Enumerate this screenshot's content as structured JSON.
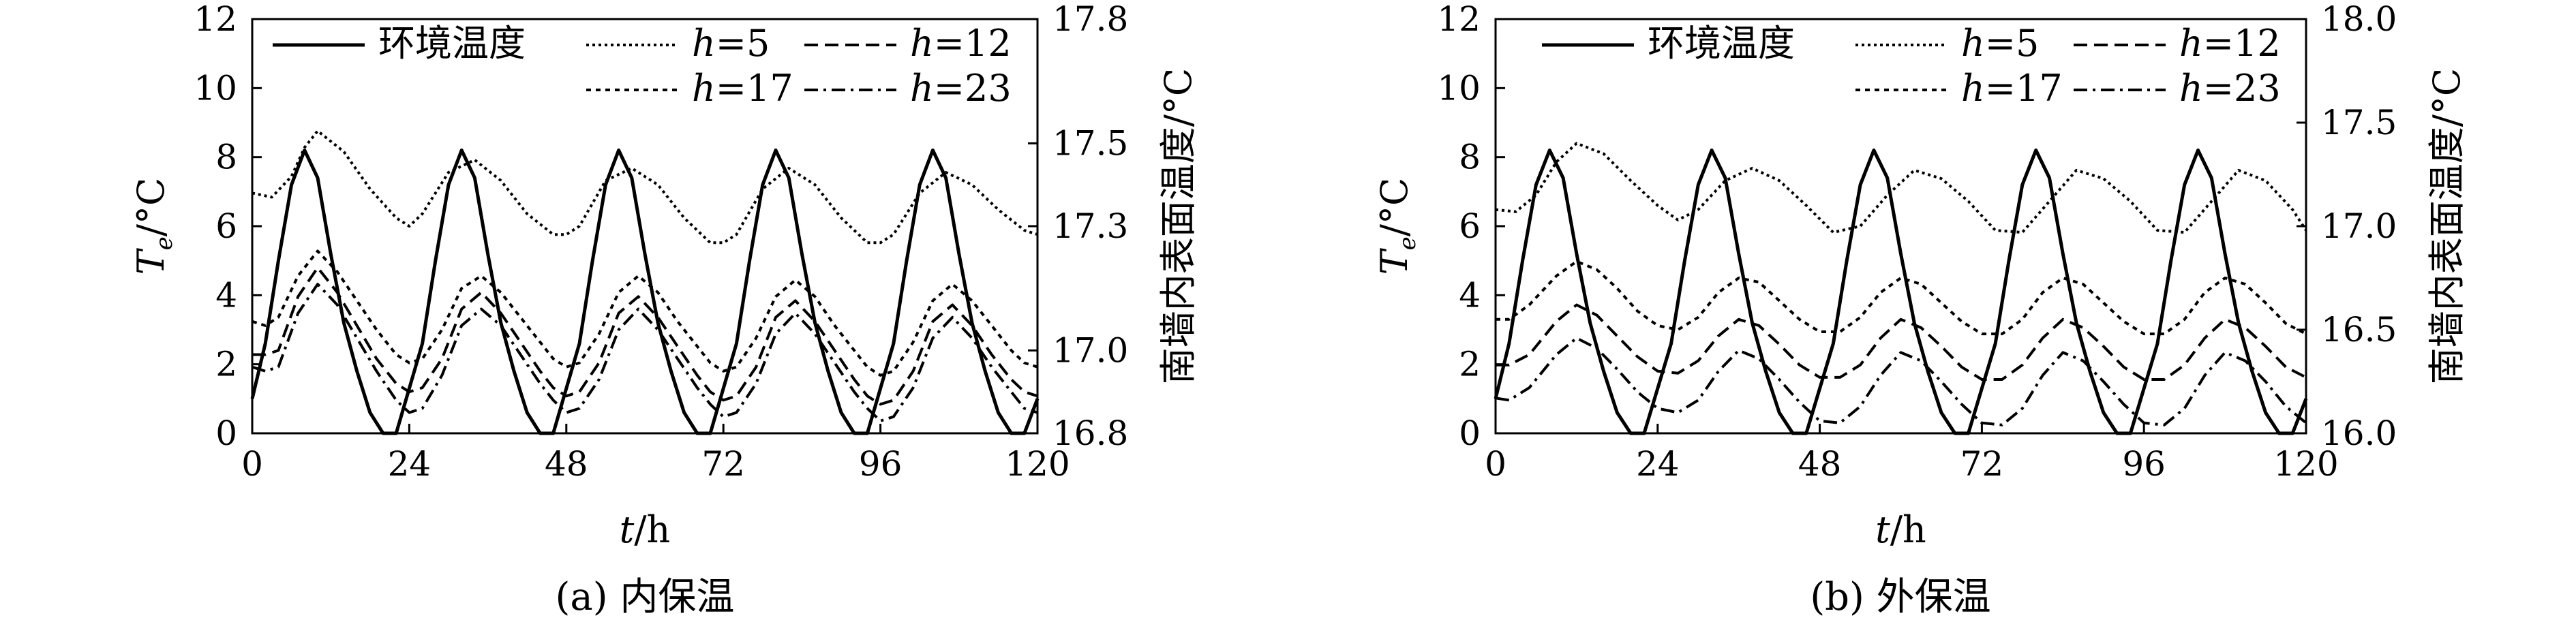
{
  "figure": {
    "panels": [
      {
        "caption": "(a) 内保温",
        "ylabel_left": "T_e/°C",
        "ylabel_right": "南墙内表面温度/°C",
        "xlabel": "t/h"
      },
      {
        "caption": "(b) 外保温",
        "ylabel_left": "T_e/°C",
        "ylabel_right": "南墙内表面温度/°C",
        "xlabel": "t/h"
      }
    ],
    "legend": [
      "环境温度",
      "h=5",
      "h=12",
      "h=17",
      "h=23"
    ]
  },
  "chart_data": [
    {
      "type": "line",
      "caption": "(a) 内保温",
      "xlabel": "t/h",
      "ylabel": "T_e/°C",
      "ylabel_right": "南墙内表面温度/°C",
      "xlim": [
        0,
        120
      ],
      "xticks": [
        0,
        24,
        48,
        72,
        96,
        120
      ],
      "ylim": [
        0,
        12
      ],
      "yticks": [
        0,
        2,
        4,
        6,
        8,
        10,
        12
      ],
      "ylim_right": [
        16.8,
        17.8
      ],
      "yticks_right": [
        16.8,
        17.0,
        17.3,
        17.5,
        17.8
      ],
      "grid": false,
      "legend_position": "top",
      "series": [
        {
          "name": "环境温度",
          "axis": "left",
          "style": "solid",
          "x": [
            0,
            2,
            4,
            6,
            8,
            10,
            12,
            14,
            16,
            18,
            20,
            22,
            26,
            28,
            30,
            32,
            34,
            36,
            38,
            40,
            42,
            44,
            46,
            50,
            52,
            54,
            56,
            58,
            60,
            62,
            64,
            66,
            68,
            70,
            74,
            76,
            78,
            80,
            82,
            84,
            86,
            88,
            90,
            92,
            94,
            98,
            100,
            102,
            104,
            106,
            108,
            110,
            112,
            114,
            116,
            118,
            120
          ],
          "y": [
            1.0,
            2.6,
            5.0,
            7.2,
            8.2,
            7.4,
            5.2,
            3.2,
            1.8,
            0.6,
            0.0,
            0.0,
            2.6,
            5.0,
            7.2,
            8.2,
            7.4,
            5.2,
            3.2,
            1.8,
            0.6,
            0.0,
            0.0,
            2.6,
            5.0,
            7.2,
            8.2,
            7.4,
            5.2,
            3.2,
            1.8,
            0.6,
            0.0,
            0.0,
            2.6,
            5.0,
            7.2,
            8.2,
            7.4,
            5.2,
            3.2,
            1.8,
            0.6,
            0.0,
            0.0,
            2.6,
            5.0,
            7.2,
            8.2,
            7.4,
            5.2,
            3.2,
            1.8,
            0.6,
            0.0,
            0.0,
            1.0
          ]
        },
        {
          "name": "h=5",
          "axis": "right",
          "style": "dotted",
          "x": [
            0,
            3,
            6,
            8,
            10,
            14,
            18,
            22,
            24,
            26,
            30,
            34,
            38,
            42,
            46,
            48,
            50,
            54,
            58,
            62,
            66,
            70,
            72,
            74,
            78,
            82,
            86,
            90,
            94,
            96,
            98,
            102,
            106,
            110,
            114,
            118,
            120
          ],
          "y": [
            17.38,
            17.37,
            17.42,
            17.49,
            17.53,
            17.48,
            17.39,
            17.32,
            17.3,
            17.33,
            17.43,
            17.46,
            17.41,
            17.33,
            17.28,
            17.28,
            17.3,
            17.41,
            17.44,
            17.4,
            17.32,
            17.26,
            17.26,
            17.28,
            17.39,
            17.44,
            17.4,
            17.32,
            17.26,
            17.26,
            17.28,
            17.38,
            17.43,
            17.4,
            17.34,
            17.29,
            17.28
          ]
        },
        {
          "name": "h=12",
          "axis": "right",
          "style": "dashed",
          "x": [
            0,
            2,
            4,
            7,
            10,
            13,
            16,
            19,
            22,
            24,
            26,
            29,
            32,
            35,
            38,
            41,
            44,
            46,
            48,
            50,
            53,
            56,
            59,
            62,
            65,
            68,
            70,
            72,
            74,
            77,
            80,
            83,
            86,
            89,
            92,
            94,
            96,
            98,
            101,
            104,
            107,
            110,
            113,
            116,
            118,
            120
          ],
          "y": [
            16.99,
            16.99,
            17.0,
            17.13,
            17.2,
            17.14,
            17.06,
            16.98,
            16.92,
            16.9,
            16.91,
            16.98,
            17.1,
            17.14,
            17.09,
            17.02,
            16.95,
            16.91,
            16.89,
            16.9,
            16.97,
            17.09,
            17.13,
            17.08,
            17.01,
            16.94,
            16.9,
            16.88,
            16.89,
            16.96,
            17.08,
            17.12,
            17.07,
            17.0,
            16.93,
            16.89,
            16.87,
            16.88,
            16.95,
            17.07,
            17.11,
            17.06,
            16.99,
            16.93,
            16.9,
            16.89
          ]
        },
        {
          "name": "h=17",
          "axis": "right",
          "style": "dotted-fine",
          "x": [
            0,
            2,
            4,
            7,
            10,
            13,
            16,
            19,
            22,
            24,
            26,
            29,
            32,
            35,
            38,
            41,
            44,
            46,
            48,
            50,
            53,
            56,
            59,
            62,
            65,
            68,
            70,
            72,
            74,
            77,
            80,
            83,
            86,
            89,
            92,
            94,
            96,
            98,
            101,
            104,
            107,
            110,
            113,
            116,
            118,
            120
          ],
          "y": [
            17.07,
            17.06,
            17.08,
            17.18,
            17.24,
            17.19,
            17.12,
            17.05,
            16.99,
            16.97,
            16.98,
            17.05,
            17.15,
            17.18,
            17.14,
            17.08,
            17.02,
            16.98,
            16.96,
            16.97,
            17.04,
            17.14,
            17.18,
            17.14,
            17.07,
            17.01,
            16.97,
            16.95,
            16.96,
            17.03,
            17.13,
            17.17,
            17.13,
            17.06,
            17.0,
            16.96,
            16.94,
            16.95,
            17.02,
            17.12,
            17.16,
            17.12,
            17.06,
            17.0,
            16.97,
            16.96
          ]
        },
        {
          "name": "h=23",
          "axis": "right",
          "style": "dash-dot",
          "x": [
            0,
            2,
            4,
            7,
            10,
            13,
            16,
            19,
            22,
            24,
            26,
            29,
            32,
            35,
            38,
            41,
            44,
            46,
            48,
            50,
            53,
            56,
            59,
            62,
            65,
            68,
            70,
            72,
            74,
            77,
            80,
            83,
            86,
            89,
            92,
            94,
            96,
            98,
            101,
            104,
            107,
            110,
            113,
            116,
            118,
            120
          ],
          "y": [
            16.96,
            16.95,
            16.96,
            17.09,
            17.16,
            17.11,
            17.03,
            16.95,
            16.88,
            16.85,
            16.86,
            16.94,
            17.06,
            17.1,
            17.06,
            16.99,
            16.92,
            16.88,
            16.85,
            16.86,
            16.93,
            17.05,
            17.1,
            17.05,
            16.98,
            16.91,
            16.87,
            16.84,
            16.85,
            16.92,
            17.04,
            17.09,
            17.04,
            16.97,
            16.9,
            16.86,
            16.83,
            16.84,
            16.91,
            17.03,
            17.08,
            17.03,
            16.96,
            16.9,
            16.86,
            16.85
          ]
        }
      ]
    },
    {
      "type": "line",
      "caption": "(b) 外保温",
      "xlabel": "t/h",
      "ylabel": "T_e/°C",
      "ylabel_right": "南墙内表面温度/°C",
      "xlim": [
        0,
        120
      ],
      "xticks": [
        0,
        24,
        48,
        72,
        96,
        120
      ],
      "ylim": [
        0,
        12
      ],
      "yticks": [
        0,
        2,
        4,
        6,
        8,
        10,
        12
      ],
      "ylim_right": [
        16.0,
        18.0
      ],
      "yticks_right": [
        16.0,
        16.5,
        17.0,
        17.5,
        18.0
      ],
      "grid": false,
      "legend_position": "top",
      "series": [
        {
          "name": "环境温度",
          "axis": "left",
          "style": "solid",
          "x": [
            0,
            2,
            4,
            6,
            8,
            10,
            12,
            14,
            16,
            18,
            20,
            22,
            26,
            28,
            30,
            32,
            34,
            36,
            38,
            40,
            42,
            44,
            46,
            50,
            52,
            54,
            56,
            58,
            60,
            62,
            64,
            66,
            68,
            70,
            74,
            76,
            78,
            80,
            82,
            84,
            86,
            88,
            90,
            92,
            94,
            98,
            100,
            102,
            104,
            106,
            108,
            110,
            112,
            114,
            116,
            118,
            120
          ],
          "y": [
            1.0,
            2.6,
            5.0,
            7.2,
            8.2,
            7.4,
            5.2,
            3.2,
            1.8,
            0.6,
            0.0,
            0.0,
            2.6,
            5.0,
            7.2,
            8.2,
            7.4,
            5.2,
            3.2,
            1.8,
            0.6,
            0.0,
            0.0,
            2.6,
            5.0,
            7.2,
            8.2,
            7.4,
            5.2,
            3.2,
            1.8,
            0.6,
            0.0,
            0.0,
            2.6,
            5.0,
            7.2,
            8.2,
            7.4,
            5.2,
            3.2,
            1.8,
            0.6,
            0.0,
            0.0,
            2.6,
            5.0,
            7.2,
            8.2,
            7.4,
            5.2,
            3.2,
            1.8,
            0.6,
            0.0,
            0.0,
            1.0
          ]
        },
        {
          "name": "h=5",
          "axis": "right",
          "style": "dotted",
          "x": [
            0,
            3,
            6,
            9,
            12,
            16,
            20,
            24,
            27,
            30,
            34,
            38,
            42,
            46,
            50,
            54,
            58,
            62,
            66,
            70,
            74,
            78,
            82,
            86,
            90,
            94,
            98,
            102,
            106,
            110,
            114,
            118,
            120
          ],
          "y": [
            17.08,
            17.07,
            17.15,
            17.31,
            17.4,
            17.35,
            17.22,
            17.1,
            17.03,
            17.08,
            17.22,
            17.28,
            17.22,
            17.1,
            16.97,
            17.0,
            17.15,
            17.27,
            17.23,
            17.12,
            16.98,
            16.97,
            17.12,
            17.27,
            17.23,
            17.12,
            16.98,
            16.97,
            17.12,
            17.27,
            17.22,
            17.08,
            16.98
          ]
        },
        {
          "name": "h=12",
          "axis": "right",
          "style": "dashed",
          "x": [
            0,
            2,
            5,
            9,
            12,
            15,
            18,
            21,
            24,
            27,
            30,
            33,
            36,
            39,
            42,
            45,
            48,
            51,
            54,
            57,
            60,
            63,
            66,
            69,
            72,
            75,
            78,
            81,
            84,
            87,
            90,
            93,
            96,
            99,
            102,
            105,
            108,
            111,
            114,
            117,
            120
          ],
          "y": [
            16.33,
            16.33,
            16.38,
            16.54,
            16.62,
            16.57,
            16.47,
            16.37,
            16.3,
            16.29,
            16.35,
            16.47,
            16.55,
            16.52,
            16.43,
            16.33,
            16.27,
            16.27,
            16.33,
            16.46,
            16.55,
            16.51,
            16.42,
            16.32,
            16.26,
            16.26,
            16.33,
            16.46,
            16.55,
            16.51,
            16.42,
            16.32,
            16.26,
            16.26,
            16.33,
            16.46,
            16.55,
            16.51,
            16.42,
            16.32,
            16.27
          ]
        },
        {
          "name": "h=17",
          "axis": "right",
          "style": "dotted-fine",
          "x": [
            0,
            2,
            5,
            9,
            12,
            15,
            18,
            21,
            24,
            27,
            30,
            33,
            36,
            39,
            42,
            45,
            48,
            51,
            54,
            57,
            60,
            63,
            66,
            69,
            72,
            75,
            78,
            81,
            84,
            87,
            90,
            93,
            96,
            99,
            102,
            105,
            108,
            111,
            114,
            117,
            120
          ],
          "y": [
            16.55,
            16.55,
            16.62,
            16.76,
            16.83,
            16.79,
            16.7,
            16.59,
            16.52,
            16.5,
            16.56,
            16.68,
            16.75,
            16.73,
            16.64,
            16.55,
            16.49,
            16.49,
            16.56,
            16.68,
            16.75,
            16.72,
            16.63,
            16.54,
            16.48,
            16.48,
            16.55,
            16.68,
            16.75,
            16.72,
            16.63,
            16.54,
            16.48,
            16.48,
            16.55,
            16.68,
            16.75,
            16.72,
            16.63,
            16.53,
            16.48
          ]
        },
        {
          "name": "h=23",
          "axis": "right",
          "style": "dash-dot",
          "x": [
            0,
            2,
            5,
            9,
            12,
            15,
            18,
            21,
            24,
            27,
            30,
            33,
            36,
            39,
            42,
            45,
            48,
            51,
            54,
            57,
            60,
            63,
            66,
            69,
            72,
            75,
            78,
            81,
            84,
            87,
            90,
            93,
            96,
            99,
            102,
            105,
            108,
            111,
            114,
            117,
            120
          ],
          "y": [
            16.17,
            16.16,
            16.22,
            16.38,
            16.46,
            16.41,
            16.31,
            16.2,
            16.12,
            16.1,
            16.16,
            16.3,
            16.4,
            16.36,
            16.26,
            16.15,
            16.06,
            16.05,
            16.13,
            16.28,
            16.39,
            16.35,
            16.25,
            16.14,
            16.05,
            16.04,
            16.12,
            16.28,
            16.39,
            16.35,
            16.25,
            16.14,
            16.05,
            16.04,
            16.12,
            16.28,
            16.39,
            16.35,
            16.25,
            16.13,
            16.05
          ]
        }
      ]
    }
  ]
}
